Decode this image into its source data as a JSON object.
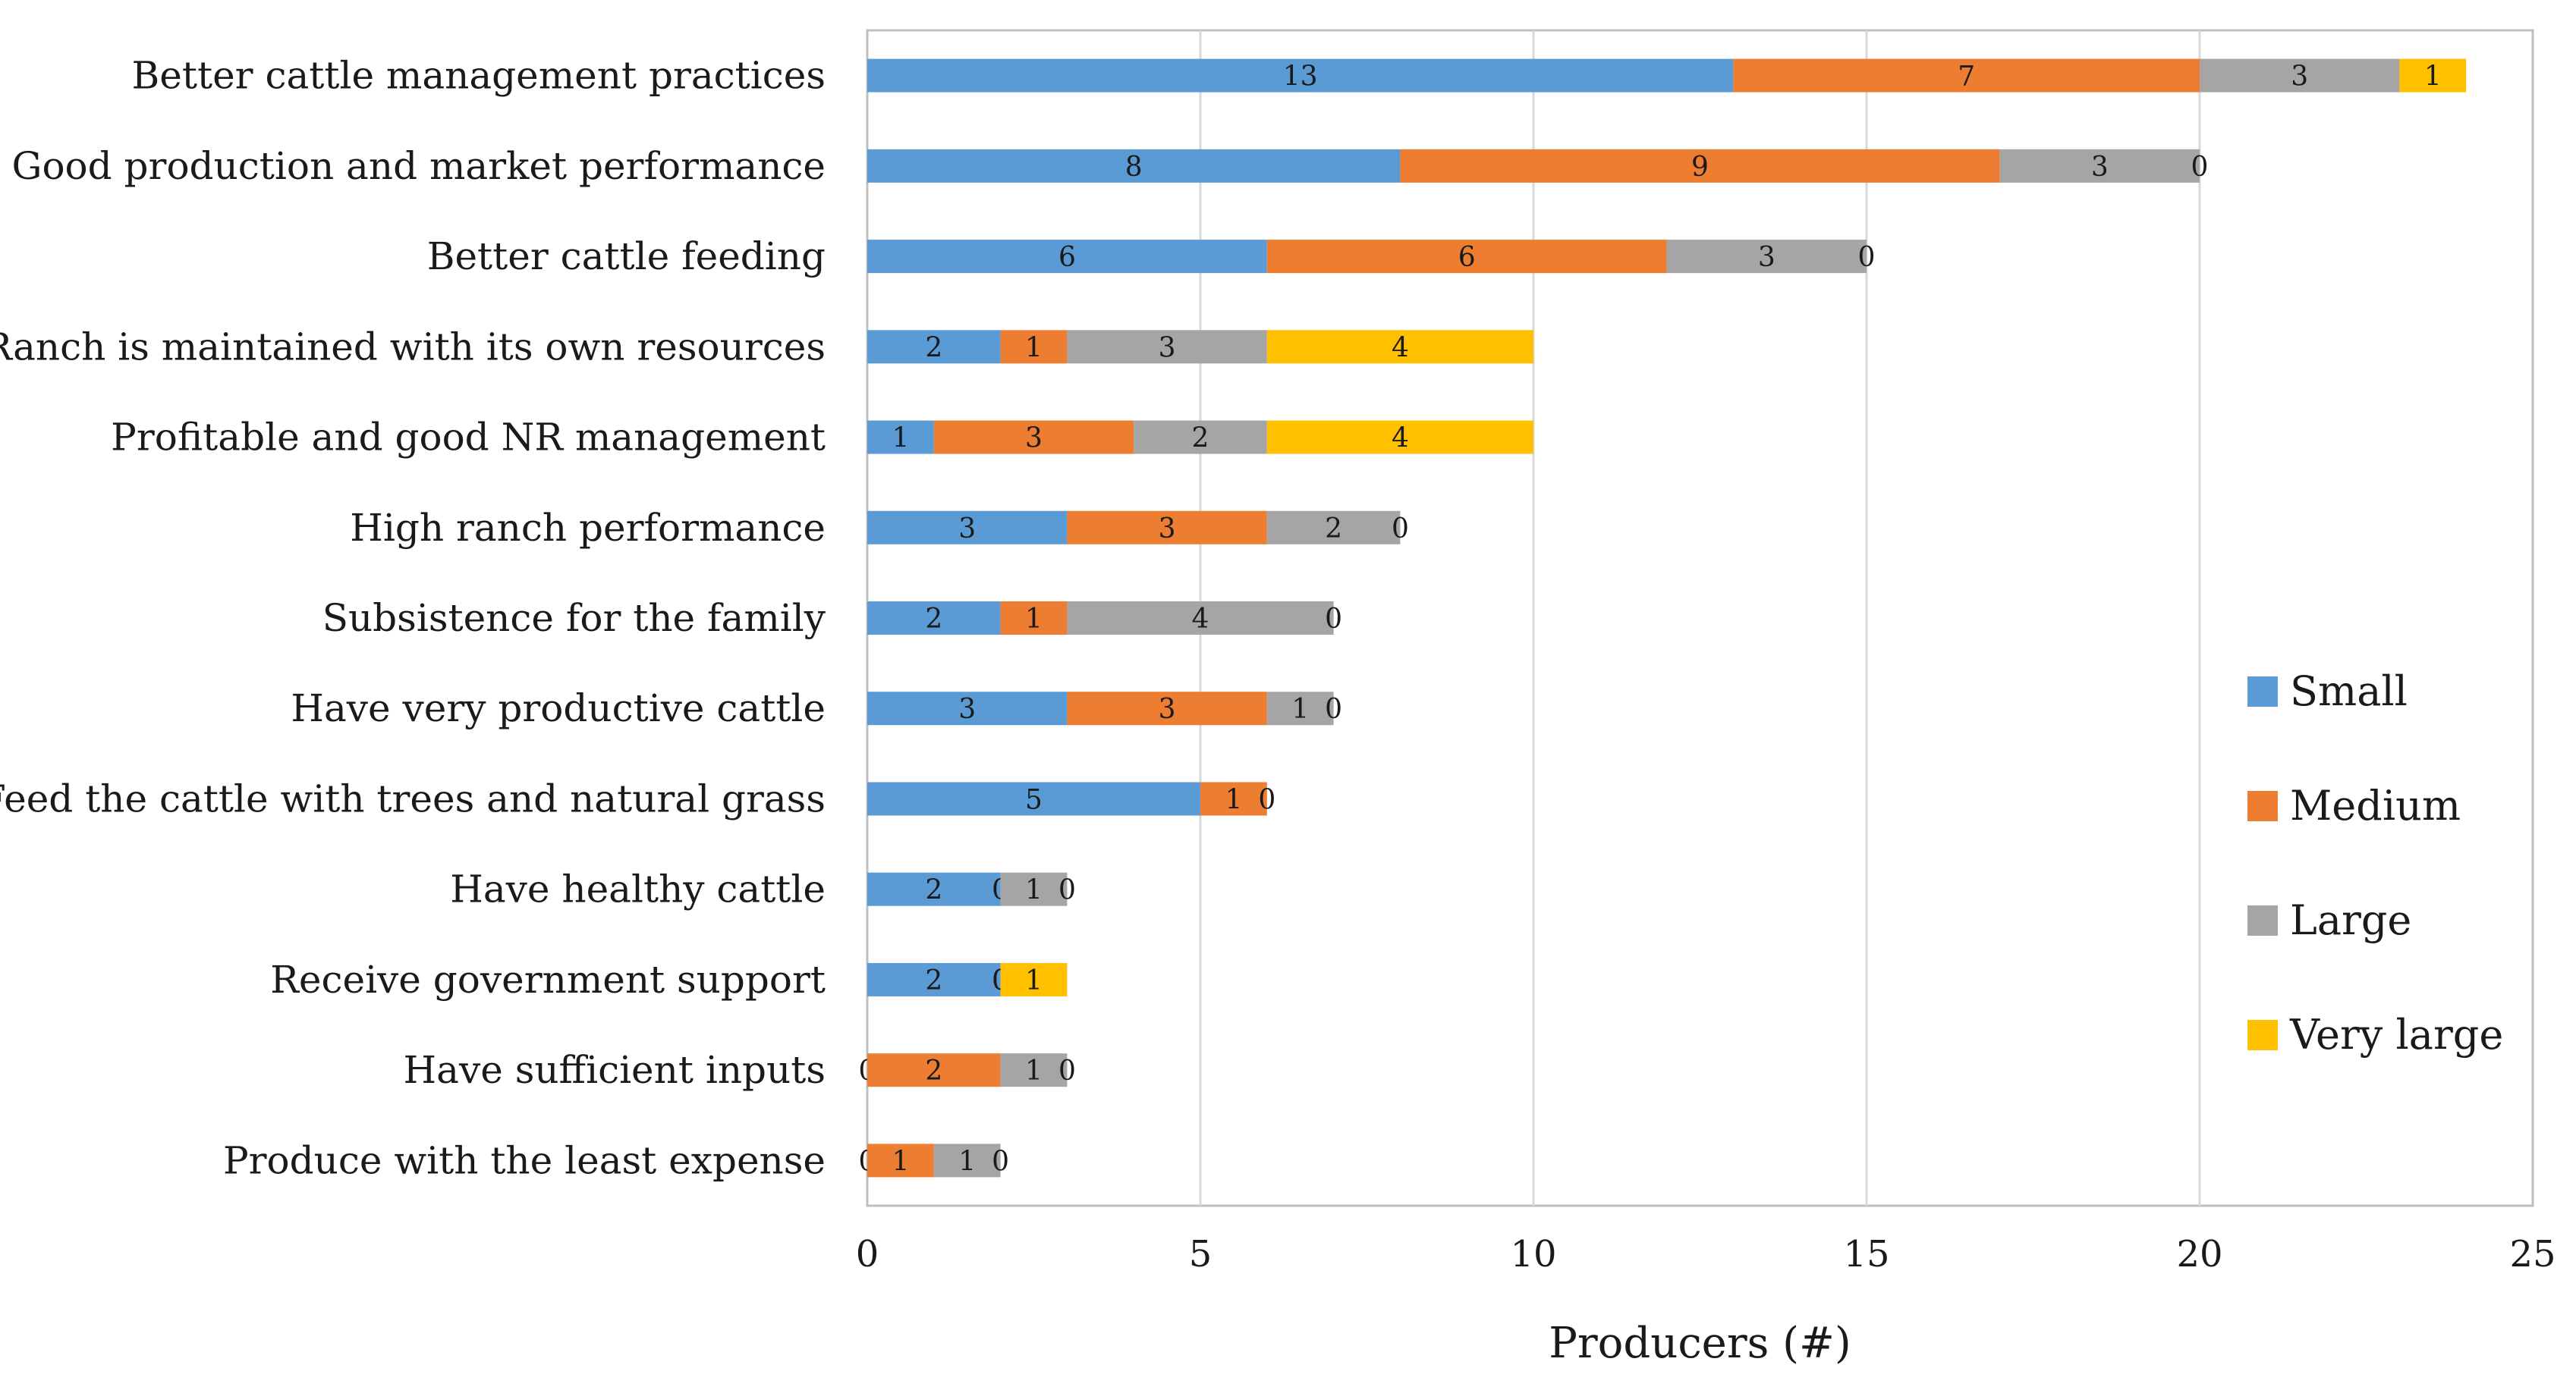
{
  "chart_data": {
    "type": "bar",
    "orientation": "horizontal",
    "stacked": true,
    "title": "",
    "xlabel": "Producers (#)",
    "ylabel": "",
    "xlim": [
      0,
      25
    ],
    "xticks": [
      0,
      5,
      10,
      15,
      20,
      25
    ],
    "grid": "vertical",
    "legend_position": "right",
    "categories": [
      "Better cattle management practices",
      "Good production and market performance",
      "Better cattle feeding",
      "Ranch is maintained with its own resources",
      "Profitable and good NR management",
      "High ranch performance",
      "Subsistence for the family",
      "Have very productive cattle",
      "Feed the cattle with trees and natural grass",
      "Have healthy cattle",
      "Receive government support",
      "Have sufficient inputs",
      "Produce with the least expense"
    ],
    "series": [
      {
        "name": "Small",
        "color": "#5b9bd5",
        "values": [
          13,
          8,
          6,
          2,
          1,
          3,
          2,
          3,
          5,
          2,
          2,
          0,
          0
        ]
      },
      {
        "name": "Medium",
        "color": "#ed7d31",
        "values": [
          7,
          9,
          6,
          1,
          3,
          3,
          1,
          3,
          1,
          0,
          0,
          2,
          1
        ]
      },
      {
        "name": "Large",
        "color": "#a5a5a5",
        "values": [
          3,
          3,
          3,
          3,
          2,
          2,
          4,
          1,
          0,
          1,
          0,
          1,
          1
        ]
      },
      {
        "name": "Very large",
        "color": "#ffc000",
        "values": [
          1,
          0,
          0,
          4,
          4,
          0,
          0,
          0,
          null,
          0,
          1,
          0,
          0
        ]
      }
    ]
  }
}
